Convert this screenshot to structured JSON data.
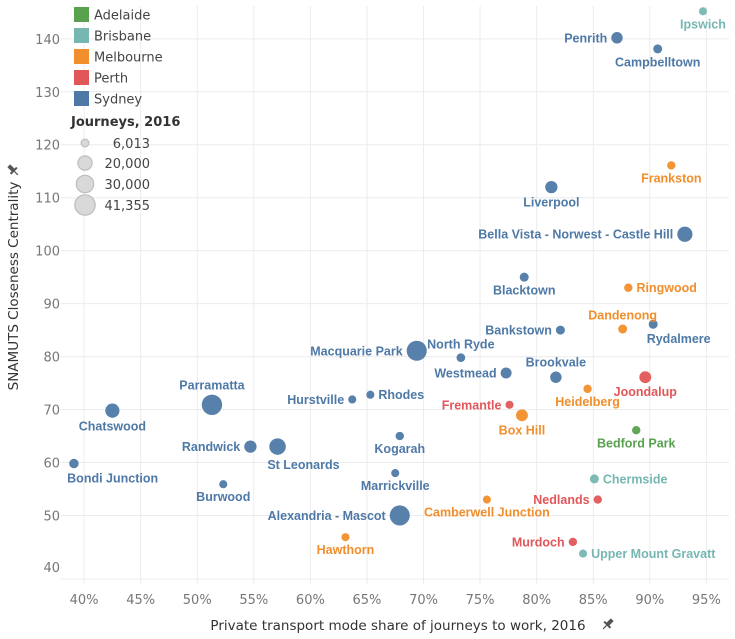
{
  "chart_data": {
    "type": "scatter",
    "title": "",
    "xlabel": "Private transport mode share of journeys to work, 2016",
    "ylabel": "SNAMUTS Closeness Centrality",
    "xlim": [
      38.4,
      97.0
    ],
    "ylim": [
      38.0,
      146.2
    ],
    "x_ticks": [
      40,
      45,
      50,
      55,
      60,
      65,
      70,
      75,
      80,
      85,
      90,
      95
    ],
    "x_tick_labels": [
      "40%",
      "45%",
      "50%",
      "55%",
      "60%",
      "65%",
      "70%",
      "75%",
      "80%",
      "85%",
      "90%",
      "95%"
    ],
    "y_ticks": [
      40,
      50,
      60,
      70,
      80,
      90,
      100,
      110,
      120,
      130,
      140
    ],
    "y_tick_labels": [
      "40",
      "50",
      "60",
      "70",
      "80",
      "90",
      "100",
      "110",
      "120",
      "130",
      "140"
    ],
    "grid": true,
    "legend": {
      "placement": "top-left",
      "color_title": "",
      "colors": [
        {
          "name": "Adelaide",
          "color": "#59a14f"
        },
        {
          "name": "Brisbane",
          "color": "#76b7b2"
        },
        {
          "name": "Melbourne",
          "color": "#f28e2b"
        },
        {
          "name": "Perth",
          "color": "#e15759"
        },
        {
          "name": "Sydney",
          "color": "#4e79a7"
        }
      ],
      "size_title": "Journeys, 2016",
      "sizes": [
        {
          "label": "6,013",
          "value": 6013
        },
        {
          "label": "20,000",
          "value": 20000
        },
        {
          "label": "30,000",
          "value": 30000
        },
        {
          "label": "41,355",
          "value": 41355
        }
      ]
    },
    "size_field": "Journeys, 2016",
    "size_max": 41355,
    "points": [
      {
        "name": "Ipswich",
        "city": "Brisbane",
        "x": 94.7,
        "y": 145.2,
        "size": 6500,
        "label_pos": "below"
      },
      {
        "name": "Penrith",
        "city": "Sydney",
        "x": 87.1,
        "y": 140.2,
        "size": 13000,
        "label_pos": "left"
      },
      {
        "name": "Campbelltown",
        "city": "Sydney",
        "x": 90.7,
        "y": 138.1,
        "size": 8000,
        "label_pos": "below"
      },
      {
        "name": "Frankston",
        "city": "Melbourne",
        "x": 91.9,
        "y": 116.1,
        "size": 7000,
        "label_pos": "below"
      },
      {
        "name": "Liverpool",
        "city": "Sydney",
        "x": 81.3,
        "y": 112.0,
        "size": 15000,
        "label_pos": "below"
      },
      {
        "name": "Bella Vista - Norwest - Castle Hill",
        "city": "Sydney",
        "x": 93.1,
        "y": 103.1,
        "size": 23000,
        "label_pos": "left"
      },
      {
        "name": "Blacktown",
        "city": "Sydney",
        "x": 78.9,
        "y": 95.0,
        "size": 8000,
        "label_pos": "below"
      },
      {
        "name": "Ringwood",
        "city": "Melbourne",
        "x": 88.1,
        "y": 93.0,
        "size": 7000,
        "label_pos": "right"
      },
      {
        "name": "Bankstown",
        "city": "Sydney",
        "x": 82.1,
        "y": 85.0,
        "size": 8000,
        "label_pos": "left"
      },
      {
        "name": "Dandenong",
        "city": "Melbourne",
        "x": 87.6,
        "y": 85.2,
        "size": 8000,
        "label_pos": "above"
      },
      {
        "name": "Rydalmere",
        "city": "Sydney",
        "x": 90.3,
        "y": 86.1,
        "size": 8000,
        "label_pos": "below-right"
      },
      {
        "name": "Macquarie Park",
        "city": "Sydney",
        "x": 69.4,
        "y": 81.1,
        "size": 40000,
        "label_pos": "left"
      },
      {
        "name": "North Ryde",
        "city": "Sydney",
        "x": 73.3,
        "y": 79.8,
        "size": 7500,
        "label_pos": "above"
      },
      {
        "name": "Westmead",
        "city": "Sydney",
        "x": 77.3,
        "y": 76.9,
        "size": 12000,
        "label_pos": "left"
      },
      {
        "name": "Brookvale",
        "city": "Sydney",
        "x": 81.7,
        "y": 76.1,
        "size": 13000,
        "label_pos": "above"
      },
      {
        "name": "Heidelberg",
        "city": "Melbourne",
        "x": 84.5,
        "y": 73.9,
        "size": 7000,
        "label_pos": "below"
      },
      {
        "name": "Joondalup",
        "city": "Perth",
        "x": 89.6,
        "y": 76.1,
        "size": 14000,
        "label_pos": "below"
      },
      {
        "name": "Hurstville",
        "city": "Sydney",
        "x": 63.7,
        "y": 71.9,
        "size": 6500,
        "label_pos": "left"
      },
      {
        "name": "Rhodes",
        "city": "Sydney",
        "x": 65.3,
        "y": 72.8,
        "size": 6500,
        "label_pos": "right"
      },
      {
        "name": "Parramatta",
        "city": "Sydney",
        "x": 51.3,
        "y": 70.9,
        "size": 41355,
        "label_pos": "above"
      },
      {
        "name": "Chatswood",
        "city": "Sydney",
        "x": 42.5,
        "y": 69.8,
        "size": 20000,
        "label_pos": "below"
      },
      {
        "name": "Fremantle",
        "city": "Perth",
        "x": 77.6,
        "y": 70.9,
        "size": 6500,
        "label_pos": "left"
      },
      {
        "name": "Box Hill",
        "city": "Melbourne",
        "x": 78.7,
        "y": 68.9,
        "size": 14000,
        "label_pos": "below"
      },
      {
        "name": "Bedford Park",
        "city": "Adelaide",
        "x": 88.8,
        "y": 66.1,
        "size": 7000,
        "label_pos": "below"
      },
      {
        "name": "Kogarah",
        "city": "Sydney",
        "x": 67.9,
        "y": 65.0,
        "size": 7000,
        "label_pos": "below"
      },
      {
        "name": "Randwick",
        "city": "Sydney",
        "x": 54.7,
        "y": 63.0,
        "size": 15000,
        "label_pos": "left"
      },
      {
        "name": "St Leonards",
        "city": "Sydney",
        "x": 57.1,
        "y": 63.0,
        "size": 27000,
        "label_pos": "below-right"
      },
      {
        "name": "Bondi Junction",
        "city": "Sydney",
        "x": 39.1,
        "y": 59.8,
        "size": 9000,
        "label_pos": "below-right"
      },
      {
        "name": "Chermside",
        "city": "Brisbane",
        "x": 85.1,
        "y": 56.9,
        "size": 8000,
        "label_pos": "right"
      },
      {
        "name": "Marrickville",
        "city": "Sydney",
        "x": 67.5,
        "y": 58.0,
        "size": 6500,
        "label_pos": "below"
      },
      {
        "name": "Burwood",
        "city": "Sydney",
        "x": 52.3,
        "y": 55.9,
        "size": 6500,
        "label_pos": "below"
      },
      {
        "name": "Camberwell Junction",
        "city": "Melbourne",
        "x": 75.6,
        "y": 53.0,
        "size": 6500,
        "label_pos": "below"
      },
      {
        "name": "Nedlands",
        "city": "Perth",
        "x": 85.4,
        "y": 53.0,
        "size": 7000,
        "label_pos": "left"
      },
      {
        "name": "Alexandria - Mascot",
        "city": "Sydney",
        "x": 67.9,
        "y": 50.0,
        "size": 40000,
        "label_pos": "left"
      },
      {
        "name": "Hawthorn",
        "city": "Melbourne",
        "x": 63.1,
        "y": 45.9,
        "size": 6500,
        "label_pos": "below"
      },
      {
        "name": "Murdoch",
        "city": "Perth",
        "x": 83.2,
        "y": 45.0,
        "size": 7000,
        "label_pos": "left"
      },
      {
        "name": "Upper Mount Gravatt",
        "city": "Brisbane",
        "x": 84.1,
        "y": 42.8,
        "size": 6500,
        "label_pos": "right"
      }
    ]
  }
}
